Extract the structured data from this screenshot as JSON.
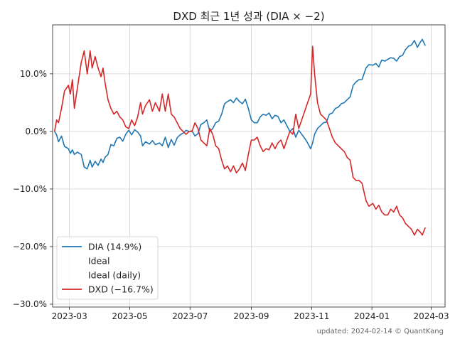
{
  "chart_data": {
    "type": "line",
    "title": "DXD 최근 1년 성과 (DIA × −2)",
    "footer": "updated: 2024-02-14 © QuantKang",
    "xlabel": "",
    "ylabel": "",
    "xlim": [
      "2023-02-12",
      "2024-03-15"
    ],
    "ylim": [
      -30.5,
      18.5
    ],
    "grid": true,
    "legend_position": "bottom-left",
    "x_ticks": [
      "2023-03",
      "2023-05",
      "2023-07",
      "2023-09",
      "2023-11",
      "2024-01",
      "2024-03"
    ],
    "y_ticks": [
      10,
      0,
      -10,
      -20,
      -30
    ],
    "y_tick_labels": [
      "10.0%",
      "0.0%",
      "−10.0%",
      "−20.0%",
      "−30.0%"
    ],
    "legend": [
      {
        "label": "DIA (14.9%)",
        "color": "#1f77b4",
        "visible_line": true
      },
      {
        "label": "Ideal",
        "color": "#ffffff",
        "visible_line": false
      },
      {
        "label": "Ideal (daily)",
        "color": "#ffffff",
        "visible_line": false
      },
      {
        "label": "DXD (−16.7%)",
        "color": "#d62728",
        "visible_line": true
      }
    ],
    "series": [
      {
        "name": "DIA (14.9%)",
        "color": "#1f77b4",
        "points": [
          [
            "2023-02-14",
            0.0
          ],
          [
            "2023-02-16",
            -0.6
          ],
          [
            "2023-02-18",
            -1.8
          ],
          [
            "2023-02-21",
            -0.8
          ],
          [
            "2023-02-24",
            -2.6
          ],
          [
            "2023-02-28",
            -3.0
          ],
          [
            "2023-03-02",
            -3.8
          ],
          [
            "2023-03-04",
            -3.2
          ],
          [
            "2023-03-06",
            -4.0
          ],
          [
            "2023-03-09",
            -3.6
          ],
          [
            "2023-03-13",
            -4.0
          ],
          [
            "2023-03-16",
            -6.2
          ],
          [
            "2023-03-19",
            -6.5
          ],
          [
            "2023-03-22",
            -5.0
          ],
          [
            "2023-03-24",
            -6.2
          ],
          [
            "2023-03-27",
            -5.2
          ],
          [
            "2023-03-30",
            -5.9
          ],
          [
            "2023-04-02",
            -4.8
          ],
          [
            "2023-04-04",
            -5.4
          ],
          [
            "2023-04-06",
            -4.5
          ],
          [
            "2023-04-09",
            -4.0
          ],
          [
            "2023-04-12",
            -2.3
          ],
          [
            "2023-04-15",
            -2.5
          ],
          [
            "2023-04-18",
            -1.2
          ],
          [
            "2023-04-21",
            -1.0
          ],
          [
            "2023-04-24",
            -1.7
          ],
          [
            "2023-04-27",
            -0.5
          ],
          [
            "2023-04-30",
            0.2
          ],
          [
            "2023-05-03",
            -0.6
          ],
          [
            "2023-05-06",
            0.3
          ],
          [
            "2023-05-09",
            -0.1
          ],
          [
            "2023-05-12",
            -0.8
          ],
          [
            "2023-05-14",
            -2.5
          ],
          [
            "2023-05-17",
            -1.8
          ],
          [
            "2023-05-21",
            -2.2
          ],
          [
            "2023-05-24",
            -1.6
          ],
          [
            "2023-05-27",
            -2.3
          ],
          [
            "2023-05-31",
            -2.0
          ],
          [
            "2023-06-03",
            -2.5
          ],
          [
            "2023-06-06",
            -1.0
          ],
          [
            "2023-06-09",
            -2.8
          ],
          [
            "2023-06-12",
            -1.4
          ],
          [
            "2023-06-15",
            -2.4
          ],
          [
            "2023-06-18",
            -1.1
          ],
          [
            "2023-06-21",
            -0.6
          ],
          [
            "2023-06-24",
            -0.3
          ],
          [
            "2023-06-27",
            0.2
          ],
          [
            "2023-06-30",
            0.0
          ],
          [
            "2023-07-03",
            0.1
          ],
          [
            "2023-07-06",
            -0.8
          ],
          [
            "2023-07-09",
            -0.4
          ],
          [
            "2023-07-12",
            1.2
          ],
          [
            "2023-07-15",
            1.5
          ],
          [
            "2023-07-18",
            2.0
          ],
          [
            "2023-07-21",
            0.0
          ],
          [
            "2023-07-24",
            0.5
          ],
          [
            "2023-07-27",
            1.5
          ],
          [
            "2023-07-30",
            1.8
          ],
          [
            "2023-08-02",
            3.0
          ],
          [
            "2023-08-05",
            4.8
          ],
          [
            "2023-08-08",
            5.2
          ],
          [
            "2023-08-11",
            5.5
          ],
          [
            "2023-08-14",
            5.0
          ],
          [
            "2023-08-17",
            5.8
          ],
          [
            "2023-08-20",
            5.2
          ],
          [
            "2023-08-23",
            4.8
          ],
          [
            "2023-08-26",
            5.6
          ],
          [
            "2023-08-29",
            4.0
          ],
          [
            "2023-09-01",
            2.0
          ],
          [
            "2023-09-04",
            1.5
          ],
          [
            "2023-09-07",
            1.5
          ],
          [
            "2023-09-10",
            2.5
          ],
          [
            "2023-09-13",
            3.0
          ],
          [
            "2023-09-16",
            2.8
          ],
          [
            "2023-09-19",
            3.2
          ],
          [
            "2023-09-22",
            2.2
          ],
          [
            "2023-09-25",
            2.8
          ],
          [
            "2023-09-28",
            2.6
          ],
          [
            "2023-10-01",
            1.5
          ],
          [
            "2023-10-04",
            2.0
          ],
          [
            "2023-10-07",
            1.0
          ],
          [
            "2023-10-10",
            0.0
          ],
          [
            "2023-10-13",
            0.5
          ],
          [
            "2023-10-16",
            -1.0
          ],
          [
            "2023-10-19",
            0.2
          ],
          [
            "2023-10-22",
            -0.5
          ],
          [
            "2023-10-25",
            -1.2
          ],
          [
            "2023-10-28",
            -2.0
          ],
          [
            "2023-10-31",
            -3.0
          ],
          [
            "2023-11-02",
            -2.0
          ],
          [
            "2023-11-04",
            -0.5
          ],
          [
            "2023-11-07",
            0.5
          ],
          [
            "2023-11-10",
            1.0
          ],
          [
            "2023-11-13",
            1.5
          ],
          [
            "2023-11-16",
            1.6
          ],
          [
            "2023-11-19",
            3.0
          ],
          [
            "2023-11-22",
            3.2
          ],
          [
            "2023-11-25",
            4.0
          ],
          [
            "2023-11-28",
            4.2
          ],
          [
            "2023-12-01",
            4.8
          ],
          [
            "2023-12-04",
            5.0
          ],
          [
            "2023-12-07",
            5.5
          ],
          [
            "2023-12-10",
            6.0
          ],
          [
            "2023-12-13",
            8.0
          ],
          [
            "2023-12-16",
            8.6
          ],
          [
            "2023-12-19",
            9.0
          ],
          [
            "2023-12-22",
            9.0
          ],
          [
            "2023-12-26",
            11.0
          ],
          [
            "2023-12-29",
            11.6
          ],
          [
            "2024-01-02",
            11.5
          ],
          [
            "2024-01-05",
            11.8
          ],
          [
            "2024-01-08",
            11.2
          ],
          [
            "2024-01-11",
            12.4
          ],
          [
            "2024-01-14",
            12.2
          ],
          [
            "2024-01-17",
            12.5
          ],
          [
            "2024-01-20",
            12.8
          ],
          [
            "2024-01-23",
            12.7
          ],
          [
            "2024-01-26",
            12.2
          ],
          [
            "2024-01-29",
            13.0
          ],
          [
            "2024-02-01",
            13.2
          ],
          [
            "2024-02-04",
            14.2
          ],
          [
            "2024-02-07",
            14.8
          ],
          [
            "2024-02-10",
            15.0
          ],
          [
            "2024-02-13",
            15.8
          ],
          [
            "2024-02-16",
            14.6
          ],
          [
            "2024-02-19",
            15.5
          ],
          [
            "2024-02-21",
            16.0
          ],
          [
            "2024-02-24",
            14.9
          ]
        ]
      },
      {
        "name": "DXD (−16.7%)",
        "color": "#d62728",
        "points": [
          [
            "2023-02-14",
            0.0
          ],
          [
            "2023-02-16",
            2.0
          ],
          [
            "2023-02-18",
            1.5
          ],
          [
            "2023-02-21",
            4.0
          ],
          [
            "2023-02-24",
            7.0
          ],
          [
            "2023-02-28",
            8.0
          ],
          [
            "2023-03-02",
            6.5
          ],
          [
            "2023-03-04",
            9.0
          ],
          [
            "2023-03-06",
            4.0
          ],
          [
            "2023-03-09",
            7.5
          ],
          [
            "2023-03-13",
            12.0
          ],
          [
            "2023-03-16",
            14.0
          ],
          [
            "2023-03-19",
            10.0
          ],
          [
            "2023-03-22",
            14.0
          ],
          [
            "2023-03-24",
            11.0
          ],
          [
            "2023-03-27",
            13.0
          ],
          [
            "2023-03-30",
            11.0
          ],
          [
            "2023-04-02",
            9.5
          ],
          [
            "2023-04-04",
            11.0
          ],
          [
            "2023-04-06",
            8.5
          ],
          [
            "2023-04-09",
            5.5
          ],
          [
            "2023-04-12",
            4.0
          ],
          [
            "2023-04-15",
            3.0
          ],
          [
            "2023-04-18",
            3.5
          ],
          [
            "2023-04-21",
            2.5
          ],
          [
            "2023-04-24",
            2.0
          ],
          [
            "2023-04-27",
            0.8
          ],
          [
            "2023-04-30",
            0.5
          ],
          [
            "2023-05-03",
            2.0
          ],
          [
            "2023-05-06",
            1.0
          ],
          [
            "2023-05-09",
            2.5
          ],
          [
            "2023-05-12",
            5.0
          ],
          [
            "2023-05-14",
            3.0
          ],
          [
            "2023-05-17",
            4.5
          ],
          [
            "2023-05-21",
            5.5
          ],
          [
            "2023-05-24",
            3.5
          ],
          [
            "2023-05-27",
            5.0
          ],
          [
            "2023-05-31",
            3.5
          ],
          [
            "2023-06-03",
            6.5
          ],
          [
            "2023-06-06",
            3.5
          ],
          [
            "2023-06-09",
            6.5
          ],
          [
            "2023-06-12",
            3.0
          ],
          [
            "2023-06-15",
            2.5
          ],
          [
            "2023-06-18",
            1.5
          ],
          [
            "2023-06-21",
            0.5
          ],
          [
            "2023-06-24",
            0.0
          ],
          [
            "2023-06-27",
            -0.5
          ],
          [
            "2023-06-30",
            0.0
          ],
          [
            "2023-07-03",
            0.0
          ],
          [
            "2023-07-06",
            1.5
          ],
          [
            "2023-07-09",
            0.5
          ],
          [
            "2023-07-12",
            -1.5
          ],
          [
            "2023-07-15",
            -2.0
          ],
          [
            "2023-07-18",
            -2.5
          ],
          [
            "2023-07-21",
            0.5
          ],
          [
            "2023-07-24",
            -0.5
          ],
          [
            "2023-07-27",
            -2.5
          ],
          [
            "2023-07-30",
            -3.0
          ],
          [
            "2023-08-02",
            -5.0
          ],
          [
            "2023-08-05",
            -6.5
          ],
          [
            "2023-08-08",
            -6.0
          ],
          [
            "2023-08-11",
            -7.0
          ],
          [
            "2023-08-14",
            -6.0
          ],
          [
            "2023-08-17",
            -7.2
          ],
          [
            "2023-08-20",
            -6.5
          ],
          [
            "2023-08-23",
            -5.5
          ],
          [
            "2023-08-26",
            -6.8
          ],
          [
            "2023-08-29",
            -4.0
          ],
          [
            "2023-09-01",
            -1.5
          ],
          [
            "2023-09-04",
            -1.5
          ],
          [
            "2023-09-07",
            -1.0
          ],
          [
            "2023-09-10",
            -2.5
          ],
          [
            "2023-09-13",
            -3.5
          ],
          [
            "2023-09-16",
            -3.0
          ],
          [
            "2023-09-19",
            -3.2
          ],
          [
            "2023-09-22",
            -2.0
          ],
          [
            "2023-09-25",
            -3.0
          ],
          [
            "2023-09-28",
            -2.0
          ],
          [
            "2023-10-01",
            -1.5
          ],
          [
            "2023-10-04",
            -3.0
          ],
          [
            "2023-10-07",
            -1.5
          ],
          [
            "2023-10-10",
            0.0
          ],
          [
            "2023-10-13",
            -0.5
          ],
          [
            "2023-10-16",
            3.0
          ],
          [
            "2023-10-19",
            0.5
          ],
          [
            "2023-10-22",
            2.0
          ],
          [
            "2023-10-25",
            3.5
          ],
          [
            "2023-10-28",
            5.0
          ],
          [
            "2023-10-31",
            6.5
          ],
          [
            "2023-11-02",
            14.8
          ],
          [
            "2023-11-04",
            10.0
          ],
          [
            "2023-11-07",
            5.0
          ],
          [
            "2023-11-10",
            3.0
          ],
          [
            "2023-11-13",
            2.5
          ],
          [
            "2023-11-16",
            2.0
          ],
          [
            "2023-11-19",
            0.5
          ],
          [
            "2023-11-22",
            -1.0
          ],
          [
            "2023-11-25",
            -2.0
          ],
          [
            "2023-11-28",
            -2.5
          ],
          [
            "2023-12-01",
            -3.0
          ],
          [
            "2023-12-04",
            -3.5
          ],
          [
            "2023-12-07",
            -4.5
          ],
          [
            "2023-12-10",
            -5.0
          ],
          [
            "2023-12-13",
            -8.0
          ],
          [
            "2023-12-16",
            -8.5
          ],
          [
            "2023-12-19",
            -8.5
          ],
          [
            "2023-12-22",
            -9.0
          ],
          [
            "2023-12-26",
            -12.0
          ],
          [
            "2023-12-29",
            -13.0
          ],
          [
            "2024-01-02",
            -12.5
          ],
          [
            "2024-01-05",
            -13.5
          ],
          [
            "2024-01-08",
            -12.8
          ],
          [
            "2024-01-11",
            -14.0
          ],
          [
            "2024-01-14",
            -14.5
          ],
          [
            "2024-01-17",
            -14.5
          ],
          [
            "2024-01-20",
            -13.5
          ],
          [
            "2024-01-23",
            -14.0
          ],
          [
            "2024-01-26",
            -13.0
          ],
          [
            "2024-01-29",
            -14.5
          ],
          [
            "2024-02-01",
            -15.0
          ],
          [
            "2024-02-04",
            -16.0
          ],
          [
            "2024-02-07",
            -16.5
          ],
          [
            "2024-02-10",
            -17.0
          ],
          [
            "2024-02-13",
            -18.0
          ],
          [
            "2024-02-16",
            -17.0
          ],
          [
            "2024-02-19",
            -17.5
          ],
          [
            "2024-02-21",
            -18.0
          ],
          [
            "2024-02-24",
            -16.7
          ]
        ]
      }
    ]
  }
}
